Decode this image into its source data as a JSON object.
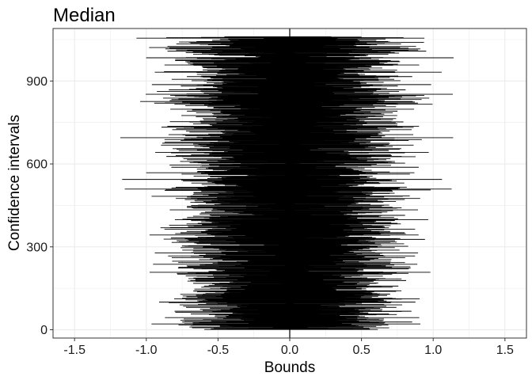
{
  "chart_data": {
    "type": "interval",
    "title": "Median",
    "xlabel": "Bounds",
    "ylabel": "Confidence intervals",
    "xlim": [
      -1.65,
      1.65
    ],
    "ylim": [
      -30,
      1090
    ],
    "xticks": [
      -1.5,
      -1.0,
      -0.5,
      0.0,
      0.5,
      1.0,
      1.5
    ],
    "xtick_labels": [
      "-1.5",
      "-1.0",
      "-0.5",
      "0.0",
      "0.5",
      "1.0",
      "1.5"
    ],
    "yticks": [
      0,
      300,
      600,
      900
    ],
    "ytick_labels": [
      "0",
      "300",
      "600",
      "900"
    ],
    "n_intervals": 1060,
    "reference_line_x": 0.0,
    "grid": true,
    "interval_color": "#000000",
    "grid_color": "#ebebeb",
    "panel_border_color": "#333333",
    "intervals": {
      "lower_mean": -0.5,
      "lower_sd": 0.2,
      "lower_range": [
        -1.25,
        -0.03
      ],
      "upper_mean": 0.5,
      "upper_sd": 0.2,
      "upper_range": [
        0.03,
        1.28
      ],
      "spread_correlation": 0.85
    }
  }
}
